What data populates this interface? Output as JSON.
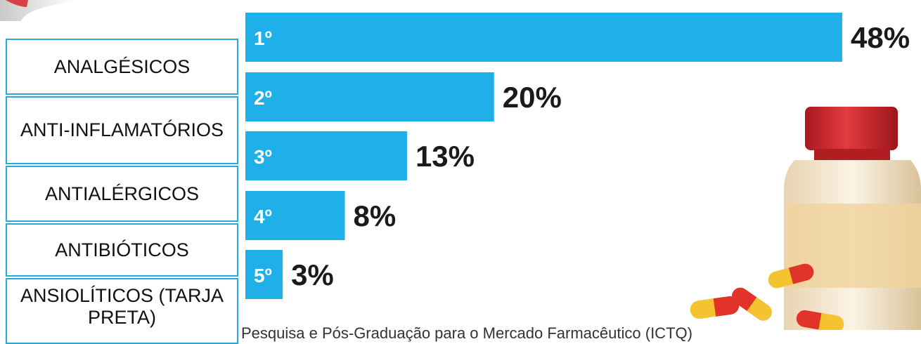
{
  "chart_data": {
    "type": "bar",
    "orientation": "horizontal",
    "categories": [
      "ANALGÉSICOS",
      "ANTI-INFLAMATÓRIOS",
      "ANTIALÉRGICOS",
      "ANTIBIÓTICOS",
      "ANSIOLÍTICOS (TARJA PRETA)"
    ],
    "ranks": [
      "1º",
      "2º",
      "3º",
      "4º",
      "5º"
    ],
    "values": [
      48,
      20,
      13,
      8,
      3
    ],
    "value_labels": [
      "48%",
      "20%",
      "13%",
      "8%",
      "3%"
    ],
    "unit": "%",
    "xlim": [
      0,
      48
    ],
    "grid": false,
    "bar_color": "#1fb0ea"
  },
  "category_boxes": [
    "ANALGÉSICOS",
    "ANTI-INFLAMATÓRIOS",
    "ANTIALÉRGICOS",
    "ANTIBIÓTICOS",
    "ANSIOLÍTICOS (TARJA PRETA)"
  ],
  "source_text": "Pesquisa e Pós-Graduação para o Mercado Farmacêutico (ICTQ)",
  "colors": {
    "bar": "#1fb0ea",
    "box_border": "#29a8e0",
    "bottle_cap": "#d7262e",
    "bottle_label": "#f3d9a6",
    "pill_red": "#e2332b",
    "pill_yellow": "#f4c430"
  },
  "icons": {
    "corner": "logo-fragment-icon",
    "illustration": "pill-bottle-icon"
  }
}
